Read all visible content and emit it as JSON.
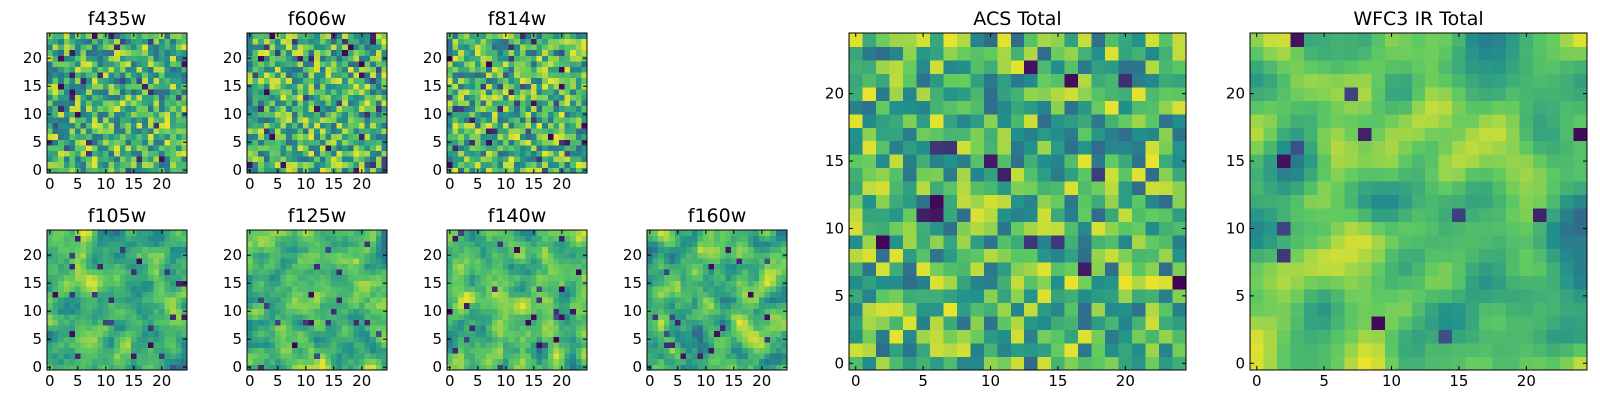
{
  "chart_data": [
    {
      "type": "heatmap",
      "title": "f435w",
      "grid_size": 25,
      "colormap": "viridis",
      "x_ticks": [
        "0",
        "5",
        "10",
        "15",
        "20"
      ],
      "y_ticks": [
        "0",
        "5",
        "10",
        "15",
        "20"
      ],
      "xlim": [
        0,
        24
      ],
      "ylim": [
        0,
        24
      ],
      "seed": 11,
      "smooth": 0,
      "dark_fraction": 0.05
    },
    {
      "type": "heatmap",
      "title": "f606w",
      "grid_size": 25,
      "colormap": "viridis",
      "x_ticks": [
        "0",
        "5",
        "10",
        "15",
        "20"
      ],
      "y_ticks": [
        "0",
        "5",
        "10",
        "15",
        "20"
      ],
      "xlim": [
        0,
        24
      ],
      "ylim": [
        0,
        24
      ],
      "seed": 23,
      "smooth": 0,
      "dark_fraction": 0.06
    },
    {
      "type": "heatmap",
      "title": "f814w",
      "grid_size": 25,
      "colormap": "viridis",
      "x_ticks": [
        "0",
        "5",
        "10",
        "15",
        "20"
      ],
      "y_ticks": [
        "0",
        "5",
        "10",
        "15",
        "20"
      ],
      "xlim": [
        0,
        24
      ],
      "ylim": [
        0,
        24
      ],
      "seed": 37,
      "smooth": 0,
      "dark_fraction": 0.06
    },
    {
      "type": "heatmap",
      "title": "f105w",
      "grid_size": 25,
      "colormap": "viridis",
      "x_ticks": [
        "0",
        "5",
        "10",
        "15",
        "20"
      ],
      "y_ticks": [
        "0",
        "5",
        "10",
        "15",
        "20"
      ],
      "xlim": [
        0,
        24
      ],
      "ylim": [
        0,
        24
      ],
      "seed": 41,
      "smooth": 1,
      "dark_fraction": 0.04
    },
    {
      "type": "heatmap",
      "title": "f125w",
      "grid_size": 25,
      "colormap": "viridis",
      "x_ticks": [
        "0",
        "5",
        "10",
        "15",
        "20"
      ],
      "y_ticks": [
        "0",
        "5",
        "10",
        "15",
        "20"
      ],
      "xlim": [
        0,
        24
      ],
      "ylim": [
        0,
        24
      ],
      "seed": 53,
      "smooth": 1,
      "dark_fraction": 0.03
    },
    {
      "type": "heatmap",
      "title": "f140w",
      "grid_size": 25,
      "colormap": "viridis",
      "x_ticks": [
        "0",
        "5",
        "10",
        "15",
        "20"
      ],
      "y_ticks": [
        "0",
        "5",
        "10",
        "15",
        "20"
      ],
      "xlim": [
        0,
        24
      ],
      "ylim": [
        0,
        24
      ],
      "seed": 67,
      "smooth": 1,
      "dark_fraction": 0.04
    },
    {
      "type": "heatmap",
      "title": "f160w",
      "grid_size": 25,
      "colormap": "viridis",
      "x_ticks": [
        "0",
        "5",
        "10",
        "15",
        "20"
      ],
      "y_ticks": [
        "0",
        "5",
        "10",
        "15",
        "20"
      ],
      "xlim": [
        0,
        24
      ],
      "ylim": [
        0,
        24
      ],
      "seed": 79,
      "smooth": 1,
      "dark_fraction": 0.03
    },
    {
      "type": "heatmap",
      "title": "ACS Total",
      "grid_size": 25,
      "colormap": "viridis",
      "x_ticks": [
        "0",
        "5",
        "10",
        "15",
        "20"
      ],
      "y_ticks": [
        "0",
        "5",
        "10",
        "15",
        "20"
      ],
      "xlim": [
        0,
        24
      ],
      "ylim": [
        0,
        24
      ],
      "seed": 97,
      "smooth": 0,
      "dark_fraction": 0.025
    },
    {
      "type": "heatmap",
      "title": "WFC3 IR Total",
      "grid_size": 25,
      "colormap": "viridis",
      "x_ticks": [
        "0",
        "5",
        "10",
        "15",
        "20"
      ],
      "y_ticks": [
        "0",
        "5",
        "10",
        "15",
        "20"
      ],
      "xlim": [
        0,
        24
      ],
      "ylim": [
        0,
        24
      ],
      "seed": 113,
      "smooth": 2,
      "dark_fraction": 0.02
    }
  ],
  "colors": {
    "viridis": [
      "#440154",
      "#3b528b",
      "#21918c",
      "#5ec962",
      "#fde725"
    ]
  }
}
